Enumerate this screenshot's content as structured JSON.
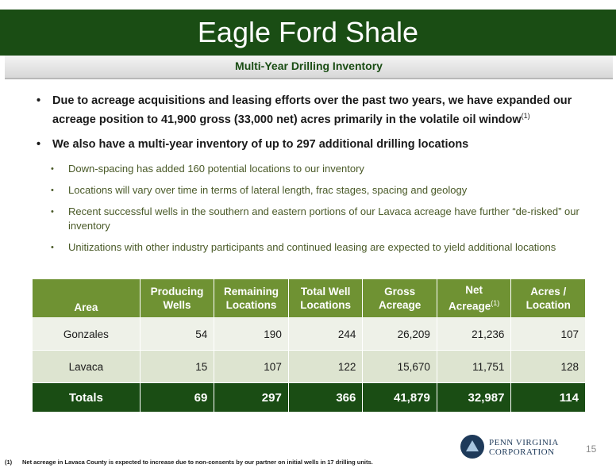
{
  "header": {
    "title": "Eagle Ford Shale",
    "subtitle": "Multi-Year Drilling Inventory"
  },
  "bullets": [
    {
      "text": "Due to acreage acquisitions and leasing efforts over the past two years, we have expanded our acreage position to 41,900 gross (33,000 net) acres primarily in the volatile oil window",
      "superscript": "(1)"
    },
    {
      "text": "We also have a multi-year inventory of up to 297 additional drilling locations",
      "sub_bullets": [
        "Down-spacing has added 160 potential locations to our inventory",
        "Locations will vary over time in terms of lateral length, frac stages, spacing and geology",
        "Recent successful wells in the southern and eastern portions of our Lavaca acreage have further “de-risked” our inventory",
        "Unitizations with other industry participants and continued leasing are expected to yield additional locations"
      ]
    }
  ],
  "table": {
    "headers": [
      {
        "line1": "Area",
        "line2": ""
      },
      {
        "line1": "Producing",
        "line2": "Wells"
      },
      {
        "line1": "Remaining",
        "line2": "Locations"
      },
      {
        "line1": "Total Well",
        "line2": "Locations"
      },
      {
        "line1": "Gross",
        "line2": "Acreage"
      },
      {
        "line1": "Net",
        "line2": "Acreage",
        "sup": "(1)"
      },
      {
        "line1": "Acres /",
        "line2": "Location"
      }
    ],
    "rows": [
      [
        "Gonzales",
        "54",
        "190",
        "244",
        "26,209",
        "21,236",
        "107"
      ],
      [
        "Lavaca",
        "15",
        "107",
        "122",
        "15,670",
        "11,751",
        "128"
      ]
    ],
    "totals": [
      "Totals",
      "69",
      "297",
      "366",
      "41,879",
      "32,987",
      "114"
    ]
  },
  "logo": {
    "line1": "PENN VIRGINIA",
    "line2": "CORPORATION"
  },
  "page_number": "15",
  "footnote": {
    "mark": "(1)",
    "text": "Net acreage in Lavaca County is expected to increase due to non-consents by our partner on initial wells in 17 drilling units."
  }
}
